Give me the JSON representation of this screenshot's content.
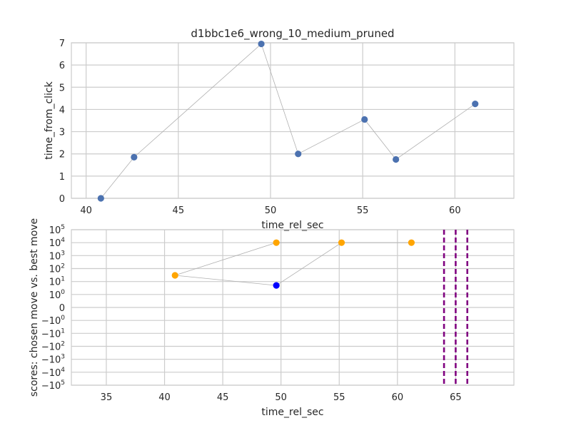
{
  "chart_data": [
    {
      "type": "scatter",
      "title": "d1bbc1e6_wrong_10_medium_pruned",
      "xlabel": "time_rel_sec",
      "ylabel": "time_from_click",
      "xlim": [
        39.2,
        63.2
      ],
      "ylim": [
        0,
        7
      ],
      "xticks": [
        40,
        45,
        50,
        55,
        60
      ],
      "yticks": [
        0,
        1,
        2,
        3,
        4,
        5,
        6,
        7
      ],
      "grid": true,
      "marker_color": "#4c72b0",
      "line_color": "#b0b0b0",
      "series": [
        {
          "x": [
            40.8,
            42.6,
            49.5,
            51.5,
            55.1,
            56.8,
            61.1
          ],
          "y": [
            0.0,
            1.85,
            6.95,
            2.0,
            3.55,
            1.75,
            4.25
          ]
        }
      ]
    },
    {
      "type": "scatter",
      "xlabel": "time_rel_sec",
      "ylabel": "scores: chosen move vs. best move",
      "xlim": [
        32,
        70
      ],
      "yscale": "symlog",
      "ylim": [
        -100000,
        100000
      ],
      "xticks": [
        35,
        40,
        45,
        50,
        55,
        60,
        65
      ],
      "yticks": [
        {
          "value": 100000,
          "label": "10",
          "exp": "5"
        },
        {
          "value": 10000,
          "label": "10",
          "exp": "4"
        },
        {
          "value": 1000,
          "label": "10",
          "exp": "3"
        },
        {
          "value": 100,
          "label": "10",
          "exp": "2"
        },
        {
          "value": 10,
          "label": "10",
          "exp": "1"
        },
        {
          "value": 1,
          "label": "10",
          "exp": "0"
        },
        {
          "value": 0,
          "label": "0",
          "exp": ""
        },
        {
          "value": -1,
          "label": "−10",
          "exp": "0"
        },
        {
          "value": -10,
          "label": "−10",
          "exp": "1"
        },
        {
          "value": -100,
          "label": "−10",
          "exp": "2"
        },
        {
          "value": -1000,
          "label": "−10",
          "exp": "3"
        },
        {
          "value": -10000,
          "label": "−10",
          "exp": "4"
        },
        {
          "value": -100000,
          "label": "−10",
          "exp": "5"
        }
      ],
      "grid": true,
      "line_color": "#b0b0b0",
      "series": [
        {
          "x": [
            40.9,
            49.6,
            55.2,
            61.2
          ],
          "y": [
            30,
            10000,
            10000,
            10000
          ],
          "color": "#ffa500"
        },
        {
          "x": [
            49.6
          ],
          "y": [
            5
          ],
          "color": "#0000ff"
        }
      ],
      "path": {
        "x": [
          61.2,
          55.2,
          49.6,
          40.9,
          49.6,
          55.2
        ],
        "y": [
          10000,
          10000,
          5,
          30,
          10000,
          10000
        ]
      },
      "vlines": [
        {
          "x": 64.0,
          "color": "#800080",
          "style": "dashed"
        },
        {
          "x": 65.0,
          "color": "#800080",
          "style": "dashed"
        },
        {
          "x": 66.0,
          "color": "#800080",
          "style": "dashed"
        }
      ]
    }
  ]
}
